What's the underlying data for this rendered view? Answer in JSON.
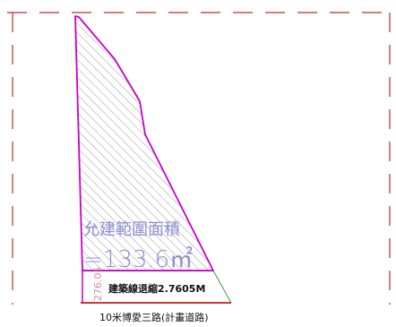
{
  "drawing": {
    "area_label_line1": "允建範圍面積",
    "area_label_line2": "=133.6㎡",
    "setback_label": "建築線退縮2.7605M",
    "dimension_label": "276.05",
    "road_label": "10米博愛三路(計畫道路)"
  },
  "colors": {
    "boundary_dashed": "#c0282e",
    "building_outline": "#c800c8",
    "hatch": "#909090",
    "area_text": "#8a8fd0",
    "setback_line_green": "#2a9a4a",
    "road_line": "#d01818",
    "dimension_text": "#d08aa0",
    "label_text": "#111111"
  }
}
